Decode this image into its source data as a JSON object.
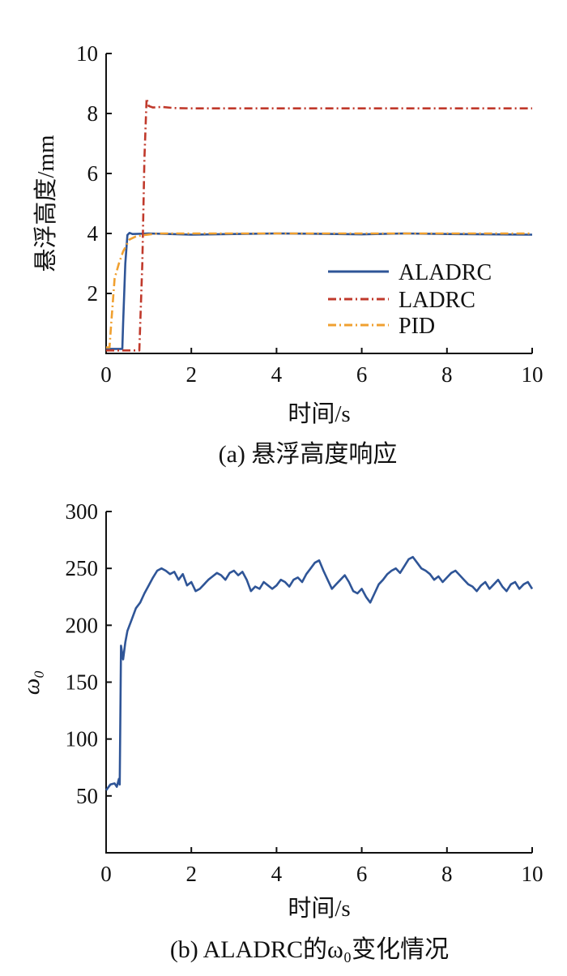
{
  "chart_data": [
    {
      "type": "line",
      "caption": "(a) 悬浮高度响应",
      "xlabel": "时间/s",
      "ylabel": "悬浮高度/mm",
      "xlim": [
        0,
        10
      ],
      "ylim": [
        0,
        10
      ],
      "xticks": [
        0,
        2,
        4,
        6,
        8,
        10
      ],
      "yticks": [
        2,
        4,
        6,
        8,
        10
      ],
      "legend_position": "bottom-right",
      "series": [
        {
          "name": "ALADRC",
          "color": "#2f5597",
          "style": "solid",
          "x": [
            0,
            0.38,
            0.4,
            0.45,
            0.5,
            0.55,
            0.62,
            1.0,
            1.5,
            2.0,
            3.0,
            4.0,
            5.0,
            6.0,
            7.0,
            8.0,
            9.0,
            10.0
          ],
          "y": [
            0.15,
            0.15,
            1.0,
            3.0,
            3.95,
            4.02,
            3.98,
            4.0,
            3.98,
            3.96,
            3.98,
            4.0,
            3.99,
            3.97,
            4.0,
            3.98,
            3.97,
            3.96
          ]
        },
        {
          "name": "LADRC",
          "color": "#c0392b",
          "style": "dashdot",
          "x": [
            0,
            0.78,
            0.85,
            0.9,
            0.95,
            1.0,
            1.1,
            1.3,
            1.6,
            2.0,
            3.0,
            4.0,
            5.0,
            6.0,
            7.0,
            8.0,
            9.0,
            10.0
          ],
          "y": [
            0.1,
            0.1,
            3.0,
            6.5,
            8.5,
            8.25,
            8.2,
            8.22,
            8.18,
            8.17,
            8.17,
            8.17,
            8.17,
            8.17,
            8.17,
            8.17,
            8.17,
            8.17
          ]
        },
        {
          "name": "PID",
          "color": "#f0a030",
          "style": "dashdot",
          "x": [
            0,
            0.08,
            0.12,
            0.2,
            0.3,
            0.4,
            0.55,
            0.7,
            0.9,
            1.2,
            1.5,
            2.0,
            3.0,
            4.0,
            5.0,
            6.0,
            7.0,
            8.0,
            9.0,
            10.0
          ],
          "y": [
            0.2,
            0.2,
            1.0,
            2.5,
            3.0,
            3.4,
            3.8,
            3.9,
            3.95,
            4.0,
            4.0,
            4.0,
            4.0,
            4.0,
            4.0,
            4.0,
            4.0,
            4.0,
            4.0,
            4.0
          ]
        }
      ]
    },
    {
      "type": "line",
      "caption": "(b) ALADRC的ω₀变化情况",
      "xlabel": "时间/s",
      "ylabel": "ω₀",
      "xlim": [
        0,
        10
      ],
      "ylim": [
        0,
        300
      ],
      "xticks": [
        0,
        2,
        4,
        6,
        8,
        10
      ],
      "yticks": [
        50,
        100,
        150,
        200,
        250,
        300
      ],
      "series": [
        {
          "color": "#2f5597",
          "style": "solid",
          "x": [
            0,
            0.1,
            0.2,
            0.25,
            0.3,
            0.32,
            0.35,
            0.4,
            0.45,
            0.5,
            0.6,
            0.7,
            0.8,
            0.9,
            1.0,
            1.1,
            1.2,
            1.3,
            1.4,
            1.5,
            1.6,
            1.7,
            1.8,
            1.9,
            2.0,
            2.1,
            2.2,
            2.3,
            2.4,
            2.5,
            2.6,
            2.7,
            2.8,
            2.9,
            3.0,
            3.1,
            3.2,
            3.3,
            3.4,
            3.5,
            3.6,
            3.7,
            3.8,
            3.9,
            4.0,
            4.1,
            4.2,
            4.3,
            4.4,
            4.5,
            4.6,
            4.7,
            4.8,
            4.9,
            5.0,
            5.1,
            5.2,
            5.3,
            5.4,
            5.5,
            5.6,
            5.7,
            5.8,
            5.9,
            6.0,
            6.1,
            6.2,
            6.3,
            6.4,
            6.5,
            6.6,
            6.7,
            6.8,
            6.9,
            7.0,
            7.1,
            7.2,
            7.3,
            7.4,
            7.5,
            7.6,
            7.7,
            7.8,
            7.9,
            8.0,
            8.1,
            8.2,
            8.3,
            8.4,
            8.5,
            8.6,
            8.7,
            8.8,
            8.9,
            9.0,
            9.1,
            9.2,
            9.3,
            9.4,
            9.5,
            9.6,
            9.7,
            9.8,
            9.9,
            10.0
          ],
          "y": [
            55,
            60,
            61,
            58,
            65,
            60,
            182,
            170,
            185,
            195,
            205,
            215,
            220,
            228,
            235,
            242,
            248,
            250,
            248,
            245,
            247,
            240,
            245,
            235,
            238,
            230,
            232,
            236,
            240,
            243,
            246,
            244,
            240,
            246,
            248,
            244,
            247,
            240,
            230,
            234,
            232,
            238,
            235,
            232,
            235,
            240,
            238,
            234,
            240,
            242,
            238,
            245,
            250,
            255,
            257,
            248,
            240,
            232,
            236,
            240,
            244,
            238,
            230,
            228,
            232,
            225,
            220,
            228,
            236,
            240,
            245,
            248,
            250,
            246,
            252,
            258,
            260,
            255,
            250,
            248,
            245,
            240,
            243,
            238,
            242,
            246,
            248,
            244,
            240,
            236,
            234,
            230,
            235,
            238,
            232,
            236,
            240,
            234,
            230,
            236,
            238,
            232,
            236,
            238,
            232
          ]
        }
      ]
    }
  ]
}
